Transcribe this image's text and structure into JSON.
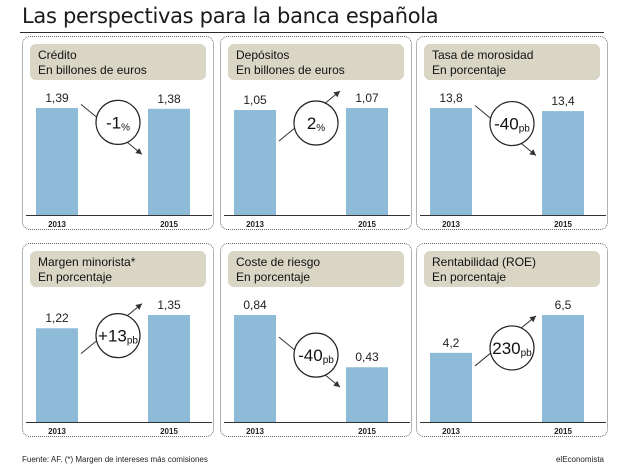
{
  "title": "Las perspectivas para la banca española",
  "footer": {
    "source": "Fuente: AF. (*) Margen de intereses más comisiones",
    "brand": "elEconomista"
  },
  "chart_data": [
    {
      "type": "bar",
      "title": "Crédito",
      "subtitle": "En billones de euros",
      "categories": [
        "2013",
        "2015"
      ],
      "values": [
        1.39,
        1.38
      ],
      "value_labels": [
        "1,39",
        "1,38"
      ],
      "change": {
        "value": "-1",
        "unit": "%",
        "direction": "down"
      }
    },
    {
      "type": "bar",
      "title": "Depósitos",
      "subtitle": "En billones de euros",
      "categories": [
        "2013",
        "2015"
      ],
      "values": [
        1.05,
        1.07
      ],
      "value_labels": [
        "1,05",
        "1,07"
      ],
      "change": {
        "value": "2",
        "unit": "%",
        "direction": "up"
      }
    },
    {
      "type": "bar",
      "title": "Tasa de morosidad",
      "subtitle": "En porcentaje",
      "categories": [
        "2013",
        "2015"
      ],
      "values": [
        13.8,
        13.4
      ],
      "value_labels": [
        "13,8",
        "13,4"
      ],
      "change": {
        "value": "-40",
        "unit": "pb",
        "direction": "down"
      }
    },
    {
      "type": "bar",
      "title": "Margen minorista*",
      "subtitle": "En porcentaje",
      "categories": [
        "2013",
        "2015"
      ],
      "values": [
        1.22,
        1.35
      ],
      "value_labels": [
        "1,22",
        "1,35"
      ],
      "change": {
        "value": "+13",
        "unit": "pb",
        "direction": "up"
      }
    },
    {
      "type": "bar",
      "title": "Coste de riesgo",
      "subtitle": "En porcentaje",
      "categories": [
        "2013",
        "2015"
      ],
      "values": [
        0.84,
        0.43
      ],
      "value_labels": [
        "0,84",
        "0,43"
      ],
      "change": {
        "value": "-40",
        "unit": "pb",
        "direction": "down"
      }
    },
    {
      "type": "bar",
      "title": "Rentabilidad (ROE)",
      "subtitle": "En porcentaje",
      "categories": [
        "2013",
        "2015"
      ],
      "values": [
        4.2,
        6.5
      ],
      "value_labels": [
        "4,2",
        "6,5"
      ],
      "change": {
        "value": "230",
        "unit": "pb",
        "direction": "up"
      }
    }
  ]
}
